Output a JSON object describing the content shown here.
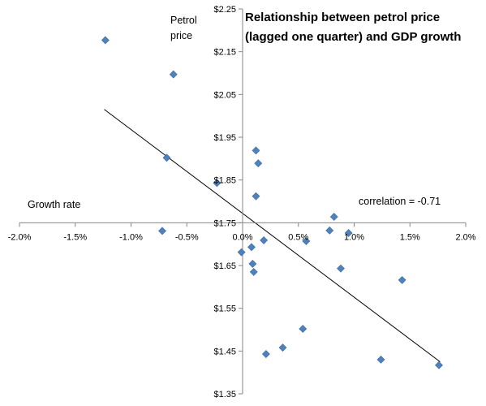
{
  "chart_data": {
    "type": "scatter",
    "title_lines": [
      "Relationship between petrol price",
      "(lagged one quarter) and GDP growth"
    ],
    "xlabel": "Growth rate",
    "ylabel_lines": [
      "Petrol",
      "price"
    ],
    "annotation": "correlation = -0.71",
    "xlim": [
      -0.02,
      0.02
    ],
    "ylim": [
      1.35,
      2.25
    ],
    "x_ticks": [
      -0.02,
      -0.015,
      -0.01,
      -0.005,
      0.0,
      0.005,
      0.01,
      0.015,
      0.02
    ],
    "x_tick_labels": [
      "-2.0%",
      "-1.5%",
      "-1.0%",
      "-0.5%",
      "0.0%",
      "0.5%",
      "1.0%",
      "1.5%",
      "2.0%"
    ],
    "y_ticks": [
      1.35,
      1.45,
      1.55,
      1.65,
      1.75,
      1.85,
      1.95,
      2.05,
      2.15,
      2.25
    ],
    "y_tick_labels": [
      "$1.35",
      "$1.45",
      "$1.55",
      "$1.65",
      "$1.75",
      "$1.85",
      "$1.95",
      "$2.05",
      "$2.15",
      "$2.25"
    ],
    "grid": false,
    "marker_color": "#4f81bd",
    "trendline_color": "#000000",
    "points": [
      {
        "x": -0.0123,
        "y": 2.177
      },
      {
        "x": -0.0062,
        "y": 2.097
      },
      {
        "x": -0.0068,
        "y": 1.902
      },
      {
        "x": -0.0072,
        "y": 1.731
      },
      {
        "x": -0.0023,
        "y": 1.843
      },
      {
        "x": 0.0012,
        "y": 1.919
      },
      {
        "x": 0.0014,
        "y": 1.889
      },
      {
        "x": 0.0012,
        "y": 1.812
      },
      {
        "x": 0.0008,
        "y": 1.693
      },
      {
        "x": 0.0019,
        "y": 1.709
      },
      {
        "x": -0.0001,
        "y": 1.681
      },
      {
        "x": 0.0009,
        "y": 1.654
      },
      {
        "x": 0.001,
        "y": 1.635
      },
      {
        "x": 0.0057,
        "y": 1.707
      },
      {
        "x": 0.0078,
        "y": 1.732
      },
      {
        "x": 0.0082,
        "y": 1.764
      },
      {
        "x": 0.0095,
        "y": 1.726
      },
      {
        "x": 0.0088,
        "y": 1.643
      },
      {
        "x": 0.0143,
        "y": 1.616
      },
      {
        "x": 0.0054,
        "y": 1.502
      },
      {
        "x": 0.0036,
        "y": 1.458
      },
      {
        "x": 0.0021,
        "y": 1.443
      },
      {
        "x": 0.0124,
        "y": 1.43
      },
      {
        "x": 0.0176,
        "y": 1.417
      }
    ],
    "trendline": [
      {
        "x": -0.0124,
        "y": 2.015
      },
      {
        "x": 0.0177,
        "y": 1.425
      }
    ]
  }
}
